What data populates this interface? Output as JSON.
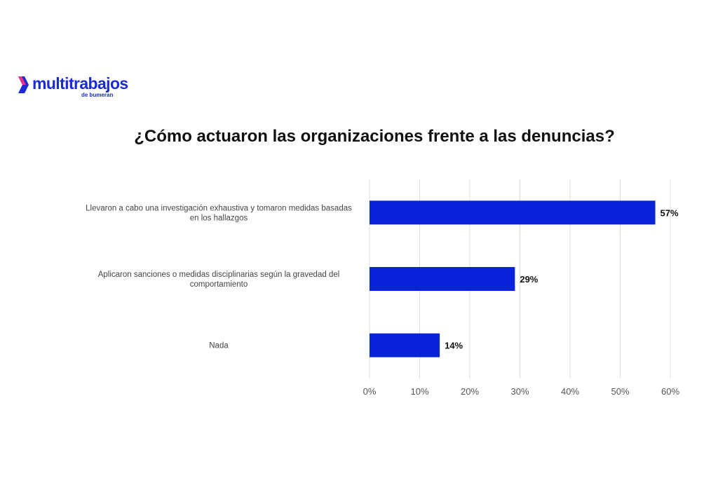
{
  "brand": {
    "name": "multitrabajos",
    "tagline": "de bumeran",
    "color": "#1a2bd6"
  },
  "chart_data": {
    "type": "bar",
    "orientation": "horizontal",
    "title": "¿Cómo actuaron las organizaciones frente a las denuncias?",
    "xlabel": "",
    "ylabel": "",
    "categories": [
      [
        "Llevaron a cabo una investigación exhaustiva y tomaron medidas basadas",
        "en los hallazgos"
      ],
      [
        "Aplicaron sanciones o medidas disciplinarias según la gravedad del",
        "comportamiento"
      ],
      [
        "Nada"
      ]
    ],
    "values": [
      57,
      29,
      14
    ],
    "data_labels": [
      "57%",
      "29%",
      "14%"
    ],
    "xlim": [
      0,
      60
    ],
    "ticks": [
      0,
      10,
      20,
      30,
      40,
      50,
      60
    ],
    "tick_labels": [
      "0%",
      "10%",
      "20%",
      "30%",
      "40%",
      "50%",
      "60%"
    ],
    "grid": true,
    "legend": "none",
    "bar_color": "#0a22d9"
  }
}
